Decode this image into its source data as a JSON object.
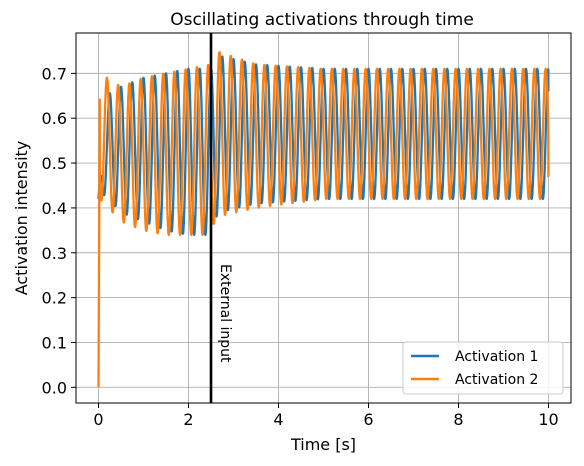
{
  "chart_data": {
    "type": "line",
    "title": "Oscillating activations through time",
    "xlabel": "Time [s]",
    "ylabel": "Activation intensity",
    "xlim": [
      -0.5,
      10.5
    ],
    "ylim": [
      -0.035,
      0.79
    ],
    "xticks": [
      0,
      2,
      4,
      6,
      8,
      10
    ],
    "xtick_labels": [
      "0",
      "2",
      "4",
      "6",
      "8",
      "10"
    ],
    "yticks": [
      0.0,
      0.1,
      0.2,
      0.3,
      0.4,
      0.5,
      0.6,
      0.7
    ],
    "ytick_labels": [
      "0.0",
      "0.1",
      "0.2",
      "0.3",
      "0.4",
      "0.5",
      "0.6",
      "0.7"
    ],
    "grid": true,
    "legend_position": "lower-right",
    "annotation": {
      "x": 2.5,
      "text": "External input",
      "line_color": "#000000"
    },
    "series": [
      {
        "name": "Activation 1",
        "color": "#1f77b4",
        "period": 0.25,
        "phase": 0.0,
        "envelope": [
          {
            "t": 0.0,
            "min": 0.42,
            "max": 0.42
          },
          {
            "t": 0.15,
            "min": 0.43,
            "max": 0.65
          },
          {
            "t": 0.5,
            "min": 0.39,
            "max": 0.67
          },
          {
            "t": 1.0,
            "min": 0.37,
            "max": 0.69
          },
          {
            "t": 1.5,
            "min": 0.35,
            "max": 0.7
          },
          {
            "t": 2.0,
            "min": 0.34,
            "max": 0.71
          },
          {
            "t": 2.5,
            "min": 0.34,
            "max": 0.71
          },
          {
            "t": 2.65,
            "min": 0.39,
            "max": 0.74
          },
          {
            "t": 3.5,
            "min": 0.41,
            "max": 0.72
          },
          {
            "t": 5.0,
            "min": 0.42,
            "max": 0.71
          },
          {
            "t": 10.0,
            "min": 0.42,
            "max": 0.71
          }
        ],
        "end_value": 0.66
      },
      {
        "name": "Activation 2",
        "color": "#ff7f0e",
        "period": 0.25,
        "phase": 0.5,
        "envelope": [
          {
            "t": 0.0,
            "min": 0.0,
            "max": 0.0
          },
          {
            "t": 0.03,
            "min": 0.42,
            "max": 0.7
          },
          {
            "t": 0.5,
            "min": 0.37,
            "max": 0.67
          },
          {
            "t": 1.0,
            "min": 0.35,
            "max": 0.69
          },
          {
            "t": 1.5,
            "min": 0.34,
            "max": 0.7
          },
          {
            "t": 2.0,
            "min": 0.34,
            "max": 0.71
          },
          {
            "t": 2.5,
            "min": 0.34,
            "max": 0.72
          },
          {
            "t": 2.6,
            "min": 0.38,
            "max": 0.75
          },
          {
            "t": 3.5,
            "min": 0.4,
            "max": 0.72
          },
          {
            "t": 5.0,
            "min": 0.42,
            "max": 0.71
          },
          {
            "t": 10.0,
            "min": 0.42,
            "max": 0.71
          }
        ],
        "end_value": 0.47
      }
    ]
  }
}
